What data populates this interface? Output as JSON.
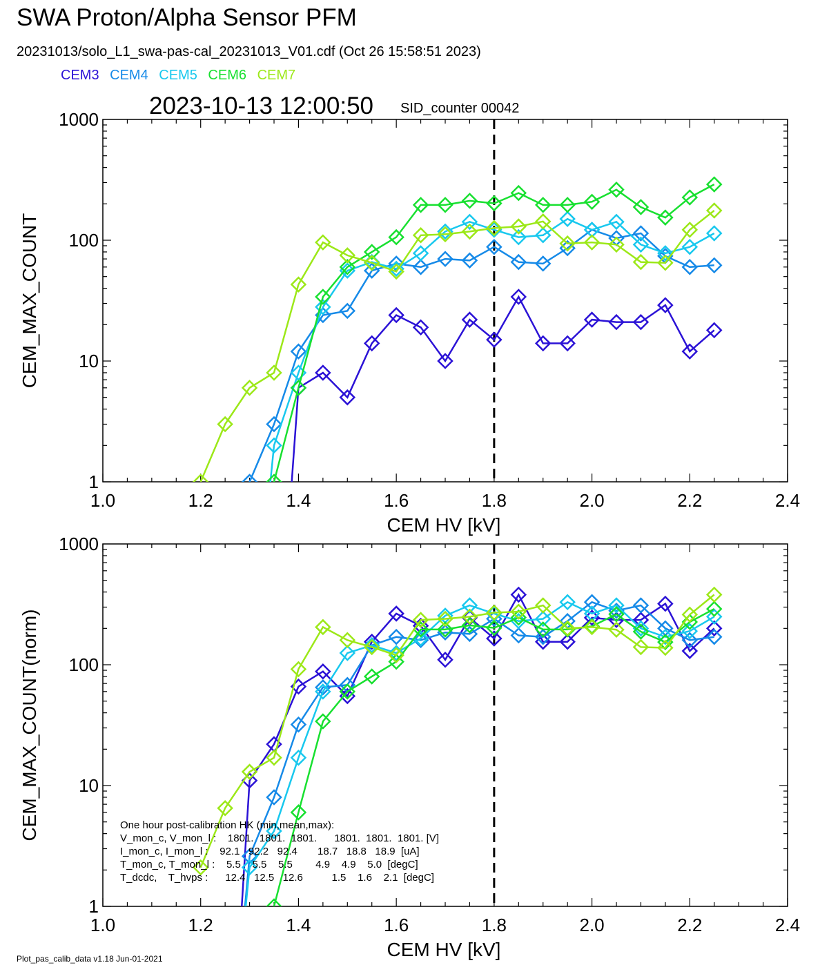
{
  "header": {
    "title": "SWA Proton/Alpha Sensor PFM",
    "file_line": "20231013/solo_L1_swa-pas-cal_20231013_V01.cdf  (Oct 26 15:58:51 2023)",
    "timestamp": "2023-10-13 12:00:50",
    "sid": "SID_counter 00042"
  },
  "legend": [
    {
      "name": "CEM3",
      "color": "#2b12d6"
    },
    {
      "name": "CEM4",
      "color": "#168ae8"
    },
    {
      "name": "CEM5",
      "color": "#18c8ee"
    },
    {
      "name": "CEM6",
      "color": "#18e030"
    },
    {
      "name": "CEM7",
      "color": "#9ce818"
    }
  ],
  "footer": "Plot_pas_calib_data v1.18 Jun-01-2021",
  "hk_box": {
    "lines": [
      "One hour post-calibration HK (min,mean,max):",
      "V_mon_c, V_mon_l :    1801.  1801.  1801.      1801.  1801.  1801. [V]",
      "I_mon_c, I_mon_l :    92.1   92.2   92.4       18.7   18.8   18.9  [uA]",
      "T_mon_c, T_mon_l :    5.5    5.5    5.5        4.9    4.9    5.0  [degC]",
      "T_dcdc,    T_hvps :      12.4   12.5   12.6          1.5    1.6    2.1  [degC]"
    ]
  },
  "chart_data": [
    {
      "type": "line",
      "title": "",
      "xlabel": "CEM HV [kV]",
      "ylabel": "CEM_MAX_COUNT",
      "xlim": [
        1.0,
        2.4
      ],
      "ylim": [
        1,
        1000
      ],
      "yscale": "log",
      "xticks": [
        "1.0",
        "1.2",
        "1.4",
        "1.6",
        "1.8",
        "2.0",
        "2.2",
        "2.4"
      ],
      "yticks": [
        "1",
        "10",
        "100",
        "1000"
      ],
      "vline": 1.8,
      "x": [
        1.2,
        1.25,
        1.3,
        1.35,
        1.4,
        1.45,
        1.5,
        1.55,
        1.6,
        1.65,
        1.7,
        1.75,
        1.8,
        1.85,
        1.9,
        1.95,
        2.0,
        2.05,
        2.1,
        2.15,
        2.2,
        2.25
      ],
      "series": [
        {
          "name": "CEM3",
          "values": [
            null,
            null,
            null,
            null,
            6,
            8,
            5,
            14,
            24,
            19,
            10,
            22,
            15,
            34,
            14,
            14,
            22,
            21,
            21,
            29,
            12,
            18
          ]
        },
        {
          "name": "CEM4",
          "values": [
            null,
            null,
            1,
            3,
            12,
            24,
            26,
            56,
            64,
            60,
            70,
            68,
            88,
            66,
            64,
            86,
            122,
            104,
            114,
            74,
            60,
            62
          ]
        },
        {
          "name": "CEM5",
          "values": [
            null,
            null,
            null,
            2,
            8,
            28,
            56,
            66,
            58,
            78,
            118,
            142,
            122,
            106,
            110,
            150,
            122,
            142,
            92,
            78,
            88,
            114
          ]
        },
        {
          "name": "CEM6",
          "values": [
            null,
            null,
            null,
            1,
            6,
            34,
            60,
            80,
            106,
            196,
            196,
            212,
            202,
            246,
            196,
            196,
            208,
            262,
            188,
            154,
            226,
            290
          ]
        },
        {
          "name": "CEM7",
          "values": [
            1,
            3,
            6,
            8,
            43,
            96,
            75,
            65,
            55,
            110,
            112,
            118,
            126,
            130,
            143,
            94,
            96,
            92,
            66,
            65,
            122,
            176
          ]
        }
      ]
    },
    {
      "type": "line",
      "title": "",
      "xlabel": "CEM HV [kV]",
      "ylabel": "CEM_MAX_COUNT(norm)",
      "xlim": [
        1.0,
        2.4
      ],
      "ylim": [
        1,
        1000
      ],
      "yscale": "log",
      "xticks": [
        "1.0",
        "1.2",
        "1.4",
        "1.6",
        "1.8",
        "2.0",
        "2.2",
        "2.4"
      ],
      "yticks": [
        "1",
        "10",
        "100",
        "1000"
      ],
      "vline": 1.8,
      "x": [
        1.2,
        1.25,
        1.3,
        1.35,
        1.4,
        1.45,
        1.5,
        1.55,
        1.6,
        1.65,
        1.7,
        1.75,
        1.8,
        1.85,
        1.9,
        1.95,
        2.0,
        2.05,
        2.1,
        2.15,
        2.2,
        2.25
      ],
      "series": [
        {
          "name": "CEM3",
          "values": [
            null,
            null,
            11,
            22,
            66,
            88,
            55,
            155,
            265,
            210,
            110,
            245,
            165,
            380,
            155,
            155,
            245,
            235,
            235,
            320,
            130,
            200
          ]
        },
        {
          "name": "CEM4",
          "values": [
            null,
            null,
            2.6,
            8,
            32,
            65,
            68,
            145,
            170,
            160,
            185,
            180,
            240,
            175,
            170,
            230,
            330,
            280,
            310,
            200,
            160,
            170
          ]
        },
        {
          "name": "CEM5",
          "values": [
            null,
            null,
            2.1,
            4.2,
            17,
            60,
            125,
            145,
            125,
            165,
            255,
            310,
            265,
            230,
            240,
            330,
            265,
            310,
            200,
            170,
            190,
            250
          ]
        },
        {
          "name": "CEM6",
          "values": [
            null,
            null,
            null,
            1,
            6,
            34,
            60,
            80,
            106,
            196,
            196,
            212,
            202,
            246,
            196,
            196,
            208,
            262,
            188,
            154,
            226,
            290
          ]
        },
        {
          "name": "CEM7",
          "values": [
            2.1,
            6.5,
            13,
            17,
            92,
            205,
            160,
            140,
            120,
            235,
            240,
            250,
            270,
            275,
            310,
            200,
            205,
            195,
            140,
            138,
            260,
            380
          ]
        }
      ]
    }
  ]
}
